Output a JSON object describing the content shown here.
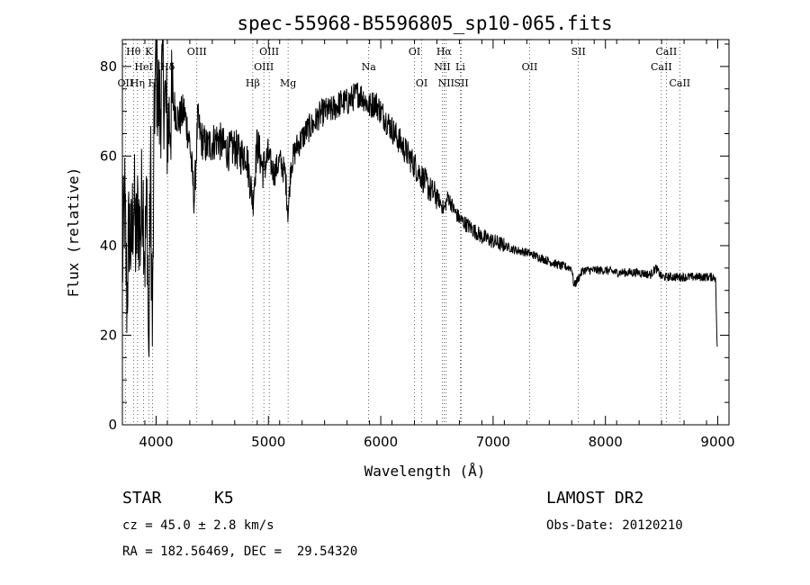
{
  "chart_data": {
    "type": "line",
    "title": "spec-55968-B5596805_sp10-065.fits",
    "xlabel": "Wavelength (Å)",
    "ylabel": "Flux (relative)",
    "xlim": [
      3700,
      9100
    ],
    "ylim": [
      0,
      86
    ],
    "xticks": [
      4000,
      5000,
      6000,
      7000,
      8000,
      9000
    ],
    "yticks": [
      0,
      20,
      40,
      60,
      80
    ],
    "grid": false,
    "line_color": "#000000",
    "series": [
      {
        "x": [
          3700,
          3720,
          3740,
          3760,
          3780,
          3800,
          3820,
          3840,
          3860,
          3880,
          3900,
          3920,
          3934,
          3950,
          3968,
          3985,
          4000,
          4030,
          4060,
          4100,
          4150,
          4200,
          4250,
          4300,
          4340,
          4370,
          4400,
          4450,
          4500,
          4550,
          4600,
          4650,
          4700,
          4750,
          4800,
          4861,
          4900,
          4950,
          5000,
          5050,
          5100,
          5150,
          5175,
          5200,
          5250,
          5300,
          5350,
          5400,
          5450,
          5500,
          5550,
          5600,
          5650,
          5700,
          5750,
          5800,
          5850,
          5893,
          5950,
          6000,
          6050,
          6100,
          6150,
          6200,
          6250,
          6300,
          6350,
          6400,
          6450,
          6500,
          6563,
          6600,
          6650,
          6700,
          6750,
          6800,
          6850,
          6900,
          6950,
          7000,
          7050,
          7100,
          7150,
          7200,
          7300,
          7400,
          7500,
          7600,
          7700,
          7720,
          7800,
          7900,
          8000,
          8100,
          8200,
          8300,
          8400,
          8450,
          8500,
          8600,
          8700,
          8800,
          8900,
          8980,
          8995
        ],
        "y": [
          35,
          50,
          28,
          45,
          38,
          52,
          40,
          48,
          42,
          55,
          38,
          50,
          12,
          60,
          18,
          72,
          80,
          70,
          78,
          66,
          72,
          68,
          70,
          63,
          50,
          68,
          64,
          62,
          63,
          64,
          62,
          61,
          62,
          60,
          61,
          50,
          63,
          57,
          60,
          56,
          59,
          56,
          47,
          58,
          62,
          64,
          66,
          67,
          69,
          70,
          70,
          71,
          72,
          72,
          73,
          74,
          73,
          71,
          72,
          70,
          68,
          66,
          64,
          62,
          60,
          58,
          56,
          54,
          52,
          51,
          48,
          51,
          48,
          46,
          45,
          44,
          43,
          42,
          41.5,
          41,
          40.5,
          40,
          39.5,
          39,
          38.5,
          37.5,
          36.5,
          35.5,
          35,
          31,
          34.5,
          34.5,
          34.5,
          34,
          34,
          34,
          33.5,
          35,
          33,
          33,
          33,
          33,
          33,
          33,
          17
        ]
      }
    ],
    "spectral_lines": [
      {
        "label": "OII",
        "wavelength": 3727,
        "row": 2
      },
      {
        "label": "Hθ",
        "wavelength": 3798,
        "row": 0
      },
      {
        "label": "Hη",
        "wavelength": 3835,
        "row": 2
      },
      {
        "label": "HeI",
        "wavelength": 3889,
        "row": 1
      },
      {
        "label": "K",
        "wavelength": 3934,
        "row": 0
      },
      {
        "label": "H",
        "wavelength": 3968,
        "row": 2
      },
      {
        "label": "Hδ",
        "wavelength": 4102,
        "row": 1
      },
      {
        "label": "OIII",
        "wavelength": 4363,
        "row": 0
      },
      {
        "label": "Hβ",
        "wavelength": 4861,
        "row": 2
      },
      {
        "label": "OIII",
        "wavelength": 4959,
        "row": 1
      },
      {
        "label": "OIII",
        "wavelength": 5007,
        "row": 0
      },
      {
        "label": "Mg",
        "wavelength": 5175,
        "row": 2
      },
      {
        "label": "Na",
        "wavelength": 5893,
        "row": 1
      },
      {
        "label": "OI",
        "wavelength": 6300,
        "row": 0
      },
      {
        "label": "OI",
        "wavelength": 6364,
        "row": 2
      },
      {
        "label": "NII",
        "wavelength": 6548,
        "row": 1
      },
      {
        "label": "Hα",
        "wavelength": 6563,
        "row": 0
      },
      {
        "label": "NII",
        "wavelength": 6583,
        "row": 2
      },
      {
        "label": "Li",
        "wavelength": 6708,
        "row": 1
      },
      {
        "label": "SII",
        "wavelength": 6717,
        "row": 2
      },
      {
        "label": "OII",
        "wavelength": 7325,
        "row": 1
      },
      {
        "label": "SII",
        "wavelength": 7760,
        "row": 0
      },
      {
        "label": "CaII",
        "wavelength": 8498,
        "row": 1
      },
      {
        "label": "CaII",
        "wavelength": 8542,
        "row": 0
      },
      {
        "label": "CaII",
        "wavelength": 8662,
        "row": 2
      }
    ]
  },
  "info": {
    "object_class": "STAR",
    "subclass": "K5",
    "survey": "LAMOST DR2",
    "redshift": "cz = 45.0 ± 2.8 km/s",
    "obs_date": "Obs-Date: 20120210",
    "coords": "RA = 182.56469, DEC =  29.54320"
  }
}
